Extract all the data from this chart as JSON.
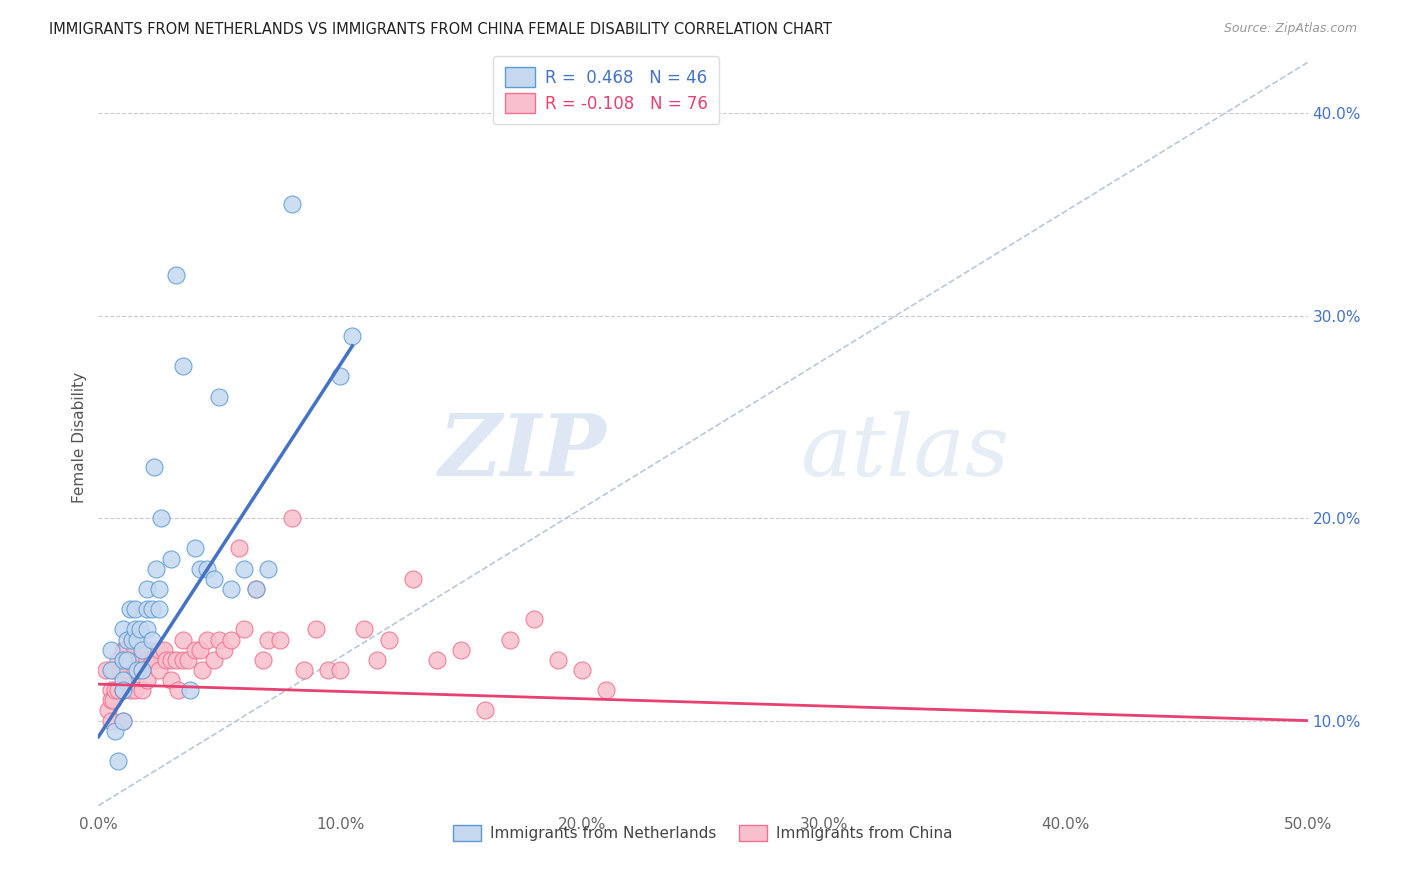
{
  "title": "IMMIGRANTS FROM NETHERLANDS VS IMMIGRANTS FROM CHINA FEMALE DISABILITY CORRELATION CHART",
  "source": "Source: ZipAtlas.com",
  "ylabel": "Female Disability",
  "xlim": [
    0.0,
    0.5
  ],
  "ylim": [
    0.055,
    0.425
  ],
  "x_ticks": [
    0.0,
    0.1,
    0.2,
    0.3,
    0.4,
    0.5
  ],
  "x_tick_labels": [
    "0.0%",
    "10.0%",
    "20.0%",
    "30.0%",
    "40.0%",
    "50.0%"
  ],
  "y_ticks": [
    0.1,
    0.2,
    0.3,
    0.4
  ],
  "y_tick_labels": [
    "10.0%",
    "20.0%",
    "30.0%",
    "40.0%"
  ],
  "legend_blue_r": "R =  0.468",
  "legend_blue_n": "N = 46",
  "legend_pink_r": "R = -0.108",
  "legend_pink_n": "N = 76",
  "legend_blue_label": "Immigrants from Netherlands",
  "legend_pink_label": "Immigrants from China",
  "blue_fill_color": "#c5d8f0",
  "pink_fill_color": "#f8c0cc",
  "blue_edge_color": "#5b9bd5",
  "pink_edge_color": "#f07090",
  "blue_line_color": "#4472C4",
  "pink_line_color": "#e84070",
  "dashed_line_color": "#b8c8d8",
  "watermark_zip": "ZIP",
  "watermark_atlas": "atlas",
  "blue_scatter_x": [
    0.005,
    0.005,
    0.007,
    0.008,
    0.01,
    0.01,
    0.01,
    0.01,
    0.01,
    0.012,
    0.012,
    0.013,
    0.014,
    0.015,
    0.015,
    0.016,
    0.016,
    0.017,
    0.018,
    0.018,
    0.02,
    0.02,
    0.02,
    0.022,
    0.022,
    0.023,
    0.024,
    0.025,
    0.025,
    0.026,
    0.03,
    0.032,
    0.035,
    0.038,
    0.04,
    0.042,
    0.045,
    0.048,
    0.05,
    0.055,
    0.06,
    0.065,
    0.07,
    0.08,
    0.1,
    0.105
  ],
  "blue_scatter_y": [
    0.135,
    0.125,
    0.095,
    0.08,
    0.145,
    0.13,
    0.12,
    0.115,
    0.1,
    0.14,
    0.13,
    0.155,
    0.14,
    0.155,
    0.145,
    0.14,
    0.125,
    0.145,
    0.135,
    0.125,
    0.145,
    0.155,
    0.165,
    0.155,
    0.14,
    0.225,
    0.175,
    0.165,
    0.155,
    0.2,
    0.18,
    0.32,
    0.275,
    0.115,
    0.185,
    0.175,
    0.175,
    0.17,
    0.26,
    0.165,
    0.175,
    0.165,
    0.175,
    0.355,
    0.27,
    0.29
  ],
  "pink_scatter_x": [
    0.003,
    0.004,
    0.005,
    0.005,
    0.005,
    0.006,
    0.006,
    0.007,
    0.008,
    0.008,
    0.009,
    0.01,
    0.01,
    0.01,
    0.01,
    0.011,
    0.011,
    0.012,
    0.013,
    0.013,
    0.014,
    0.015,
    0.015,
    0.015,
    0.016,
    0.017,
    0.018,
    0.018,
    0.019,
    0.02,
    0.02,
    0.02,
    0.022,
    0.023,
    0.025,
    0.025,
    0.027,
    0.028,
    0.03,
    0.03,
    0.032,
    0.033,
    0.035,
    0.035,
    0.037,
    0.04,
    0.042,
    0.043,
    0.045,
    0.048,
    0.05,
    0.052,
    0.055,
    0.058,
    0.06,
    0.065,
    0.068,
    0.07,
    0.075,
    0.08,
    0.085,
    0.09,
    0.095,
    0.1,
    0.11,
    0.115,
    0.12,
    0.13,
    0.14,
    0.15,
    0.16,
    0.17,
    0.18,
    0.19,
    0.2,
    0.21
  ],
  "pink_scatter_y": [
    0.125,
    0.105,
    0.115,
    0.11,
    0.1,
    0.125,
    0.11,
    0.115,
    0.13,
    0.115,
    0.125,
    0.135,
    0.125,
    0.115,
    0.1,
    0.135,
    0.12,
    0.125,
    0.13,
    0.115,
    0.13,
    0.135,
    0.125,
    0.115,
    0.13,
    0.13,
    0.125,
    0.115,
    0.135,
    0.135,
    0.13,
    0.12,
    0.13,
    0.13,
    0.135,
    0.125,
    0.135,
    0.13,
    0.13,
    0.12,
    0.13,
    0.115,
    0.14,
    0.13,
    0.13,
    0.135,
    0.135,
    0.125,
    0.14,
    0.13,
    0.14,
    0.135,
    0.14,
    0.185,
    0.145,
    0.165,
    0.13,
    0.14,
    0.14,
    0.2,
    0.125,
    0.145,
    0.125,
    0.125,
    0.145,
    0.13,
    0.14,
    0.17,
    0.13,
    0.135,
    0.105,
    0.14,
    0.15,
    0.13,
    0.125,
    0.115
  ],
  "blue_line_x": [
    0.0,
    0.105
  ],
  "blue_line_y": [
    0.092,
    0.285
  ],
  "pink_line_x": [
    0.0,
    0.5
  ],
  "pink_line_y": [
    0.118,
    0.1
  ],
  "dash_line_x": [
    0.0,
    0.5
  ],
  "dash_line_y": [
    0.058,
    0.425
  ]
}
